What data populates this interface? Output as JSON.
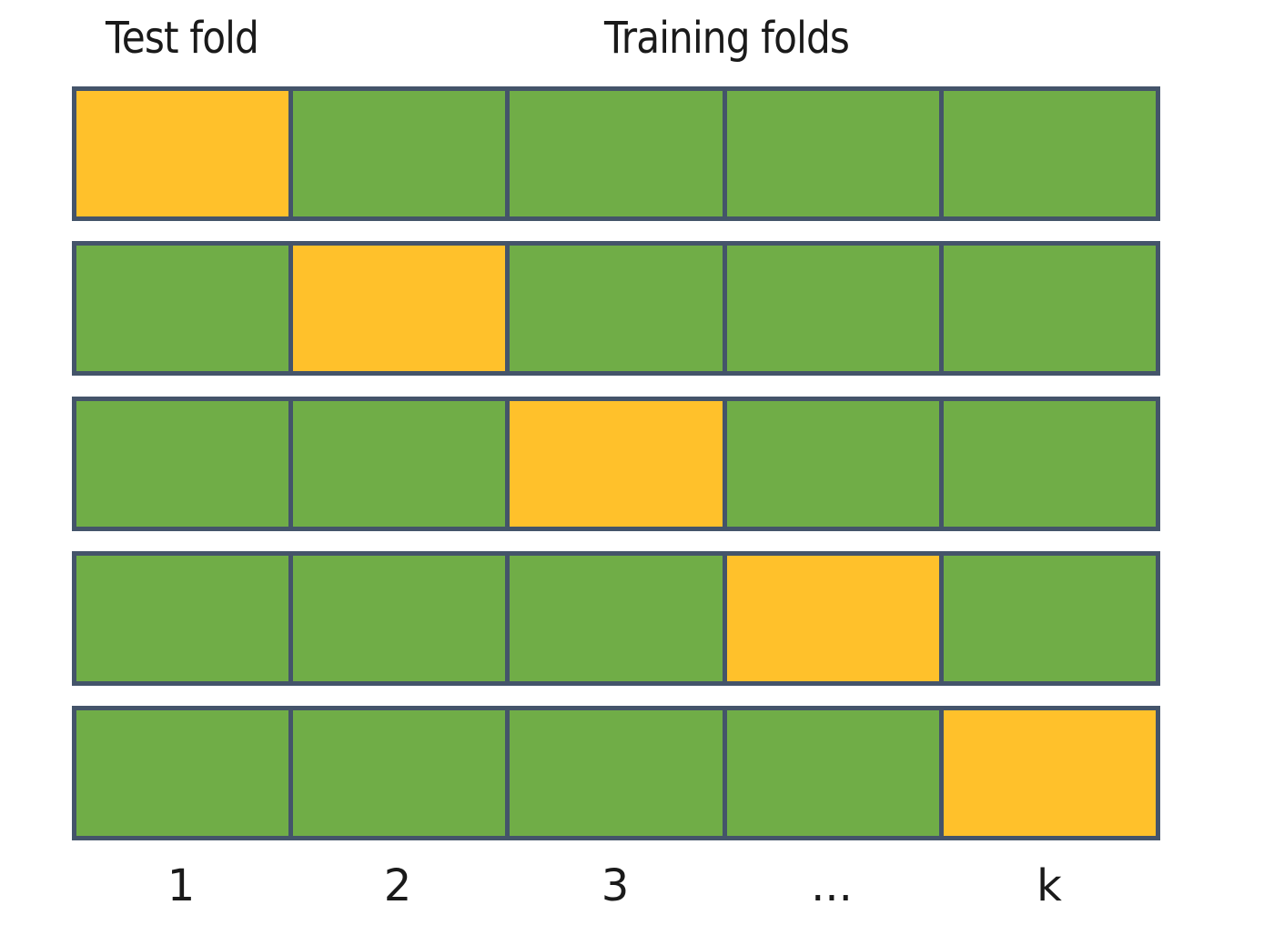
{
  "header": {
    "test_label": "Test fold",
    "training_label": "Training folds"
  },
  "colors": {
    "test": "#ffc12b",
    "train": "#70ad47",
    "border": "#44546a"
  },
  "folds": {
    "column_labels": [
      "1",
      "2",
      "3",
      "...",
      "k"
    ],
    "rows": [
      [
        "test",
        "train",
        "train",
        "train",
        "train"
      ],
      [
        "train",
        "test",
        "train",
        "train",
        "train"
      ],
      [
        "train",
        "train",
        "test",
        "train",
        "train"
      ],
      [
        "train",
        "train",
        "train",
        "test",
        "train"
      ],
      [
        "train",
        "train",
        "train",
        "train",
        "test"
      ]
    ]
  }
}
